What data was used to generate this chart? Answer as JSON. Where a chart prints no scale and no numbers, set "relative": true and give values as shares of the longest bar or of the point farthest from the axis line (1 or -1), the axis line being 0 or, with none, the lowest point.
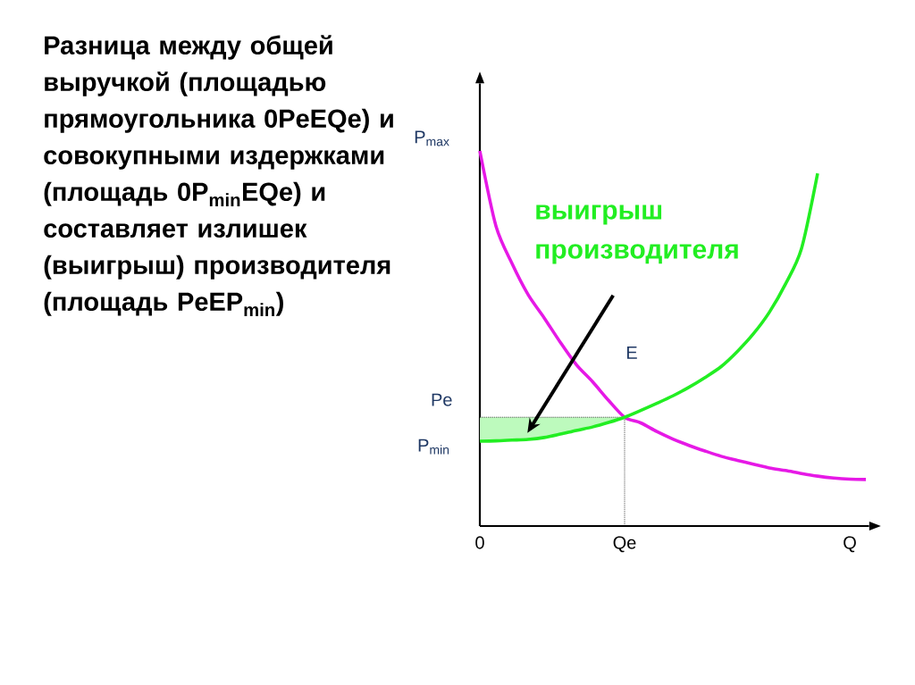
{
  "chart_data": {
    "type": "line",
    "relative": true,
    "title": "Разница между общей выручкой (площадью прямоугольника 0PeEQe) и совокупными издержками (площадь 0P$_{min}$EQe) и составляет излишек (выигрыш) производителя (площадь PeEP$_{min}$)",
    "categories": [
      "0",
      null,
      null,
      null,
      null,
      null,
      null,
      null,
      null,
      "Qe",
      null,
      null,
      null,
      null,
      null,
      null,
      null,
      null,
      null,
      null,
      null,
      null,
      null,
      "Q",
      null
    ],
    "series": [
      {
        "color": "#e619e6",
        "values": [
          1.0,
          0.8,
          0.7,
          0.617,
          0.555,
          0.49,
          0.43,
          0.385,
          0.335,
          0.29,
          0.275,
          0.252,
          0.232,
          0.215,
          0.2,
          0.186,
          0.175,
          0.165,
          0.155,
          0.148,
          0.14,
          0.133,
          0.128,
          0.125,
          0.124
        ]
      },
      {
        "color": "#22ee22",
        "values": [
          0.226,
          0.227,
          0.229,
          0.231,
          0.236,
          0.245,
          0.255,
          0.264,
          0.276,
          0.29,
          0.308,
          0.327,
          0.347,
          0.37,
          0.396,
          0.425,
          0.465,
          0.512,
          0.57,
          0.645,
          0.74,
          0.94,
          null,
          null,
          null
        ]
      }
    ],
    "ref_lines": [
      {
        "axis": "y",
        "value": 0.29,
        "label": "Pe",
        "line_style": "dotted"
      },
      {
        "axis": "x",
        "value": "Qe",
        "line_style": "dotted"
      }
    ],
    "bands": [
      {
        "axis": "y",
        "from": 0.226,
        "to": 0.29,
        "label": "выигрыш производителя",
        "color": "#bdfabd"
      }
    ],
    "annotations": [
      {
        "text": "P$_{max}$",
        "x": "0",
        "y": 1.0
      },
      {
        "text": "P$_{min}$",
        "x": "0",
        "y": 0.226
      },
      "E"
    ]
  }
}
